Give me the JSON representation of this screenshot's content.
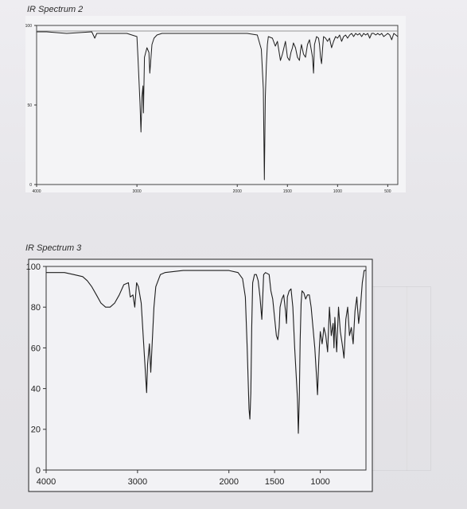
{
  "charts": [
    {
      "label": "IR Spectrum 2",
      "chart_data": {
        "type": "line",
        "xlim": [
          4000,
          400
        ],
        "ylim": [
          0,
          100
        ],
        "x_ticks": [
          "4000",
          "3000",
          "2000",
          "1500",
          "1000",
          "500"
        ],
        "x_tick_values": [
          4000,
          3000,
          2000,
          1500,
          1000,
          500
        ],
        "y_ticks": [
          "100",
          "50",
          "0"
        ],
        "y_tick_values": [
          100,
          50,
          0
        ],
        "x": [
          4000,
          3900,
          3700,
          3450,
          3420,
          3400,
          3300,
          3100,
          3050,
          3000,
          2990,
          2970,
          2960,
          2950,
          2940,
          2935,
          2925,
          2900,
          2880,
          2872,
          2860,
          2850,
          2830,
          2800,
          2750,
          2700,
          2650,
          2600,
          2500,
          2300,
          2100,
          1950,
          1900,
          1800,
          1760,
          1740,
          1730,
          1720,
          1710,
          1700,
          1690,
          1650,
          1620,
          1600,
          1570,
          1550,
          1520,
          1500,
          1480,
          1465,
          1450,
          1440,
          1420,
          1400,
          1380,
          1370,
          1360,
          1340,
          1320,
          1300,
          1280,
          1260,
          1250,
          1240,
          1230,
          1210,
          1190,
          1180,
          1170,
          1160,
          1150,
          1140,
          1120,
          1100,
          1080,
          1060,
          1040,
          1020,
          1000,
          980,
          960,
          940,
          920,
          900,
          880,
          860,
          840,
          820,
          800,
          780,
          760,
          740,
          720,
          700,
          680,
          660,
          640,
          620,
          600,
          580,
          560,
          540,
          520,
          500,
          480,
          460,
          440,
          420,
          400
        ],
        "y": [
          96,
          96,
          95,
          96,
          92,
          95,
          95,
          95,
          94,
          93,
          80,
          52,
          33,
          55,
          62,
          45,
          80,
          86,
          83,
          70,
          80,
          88,
          92,
          94,
          95,
          95,
          95,
          95,
          95,
          95,
          95,
          95,
          95,
          94,
          85,
          60,
          3,
          55,
          75,
          88,
          93,
          92,
          87,
          90,
          78,
          82,
          90,
          80,
          78,
          83,
          86,
          89,
          86,
          80,
          78,
          84,
          88,
          82,
          80,
          88,
          91,
          84,
          80,
          70,
          88,
          93,
          92,
          88,
          80,
          76,
          85,
          93,
          92,
          90,
          92,
          86,
          90,
          93,
          92,
          94,
          90,
          93,
          94,
          92,
          94,
          95,
          93,
          95,
          94,
          95,
          93,
          95,
          94,
          95,
          92,
          95,
          95,
          94,
          95,
          94,
          95,
          93,
          94,
          95,
          94,
          91,
          95,
          94,
          93
        ]
      }
    },
    {
      "label": "IR Spectrum 3",
      "chart_data": {
        "type": "line",
        "xlim": [
          4000,
          500
        ],
        "ylim": [
          0,
          100
        ],
        "x_ticks": [
          "4000",
          "3000",
          "2000",
          "1500",
          "1000"
        ],
        "x_tick_values": [
          4000,
          3000,
          2000,
          1500,
          1000
        ],
        "y_ticks": [
          "100",
          "80",
          "60",
          "40",
          "20",
          "0"
        ],
        "y_tick_values": [
          100,
          80,
          60,
          40,
          20,
          0
        ],
        "x": [
          4000,
          3800,
          3700,
          3600,
          3550,
          3500,
          3450,
          3400,
          3350,
          3300,
          3250,
          3200,
          3150,
          3100,
          3080,
          3050,
          3030,
          3010,
          2990,
          2960,
          2930,
          2900,
          2890,
          2870,
          2855,
          2820,
          2800,
          2750,
          2700,
          2500,
          2300,
          2100,
          2000,
          1900,
          1850,
          1820,
          1800,
          1780,
          1770,
          1760,
          1750,
          1740,
          1720,
          1700,
          1680,
          1660,
          1640,
          1620,
          1600,
          1560,
          1540,
          1520,
          1500,
          1480,
          1465,
          1450,
          1440,
          1420,
          1400,
          1380,
          1370,
          1360,
          1340,
          1320,
          1300,
          1280,
          1250,
          1240,
          1230,
          1220,
          1210,
          1200,
          1180,
          1160,
          1140,
          1120,
          1100,
          1080,
          1060,
          1040,
          1030,
          1020,
          1010,
          1000,
          980,
          960,
          940,
          920,
          900,
          880,
          860,
          850,
          840,
          820,
          800,
          780,
          760,
          740,
          720,
          700,
          680,
          660,
          640,
          620,
          600,
          580,
          560,
          540,
          520,
          500
        ],
        "y": [
          97,
          97,
          96,
          95,
          93,
          90,
          86,
          82,
          80,
          80,
          82,
          86,
          91,
          92,
          85,
          86,
          80,
          92,
          90,
          82,
          60,
          38,
          52,
          62,
          48,
          80,
          90,
          96,
          97,
          98,
          98,
          98,
          98,
          97,
          94,
          85,
          60,
          30,
          25,
          38,
          70,
          92,
          96,
          96,
          93,
          85,
          74,
          96,
          97,
          96,
          88,
          84,
          75,
          66,
          64,
          70,
          80,
          84,
          86,
          78,
          72,
          85,
          88,
          89,
          80,
          60,
          35,
          18,
          35,
          64,
          82,
          88,
          87,
          84,
          86,
          86,
          80,
          70,
          60,
          45,
          37,
          50,
          60,
          68,
          62,
          70,
          66,
          58,
          80,
          66,
          72,
          60,
          75,
          58,
          80,
          68,
          62,
          55,
          74,
          80,
          66,
          70,
          62,
          78,
          85,
          72,
          80,
          92,
          98,
          98
        ]
      }
    }
  ]
}
